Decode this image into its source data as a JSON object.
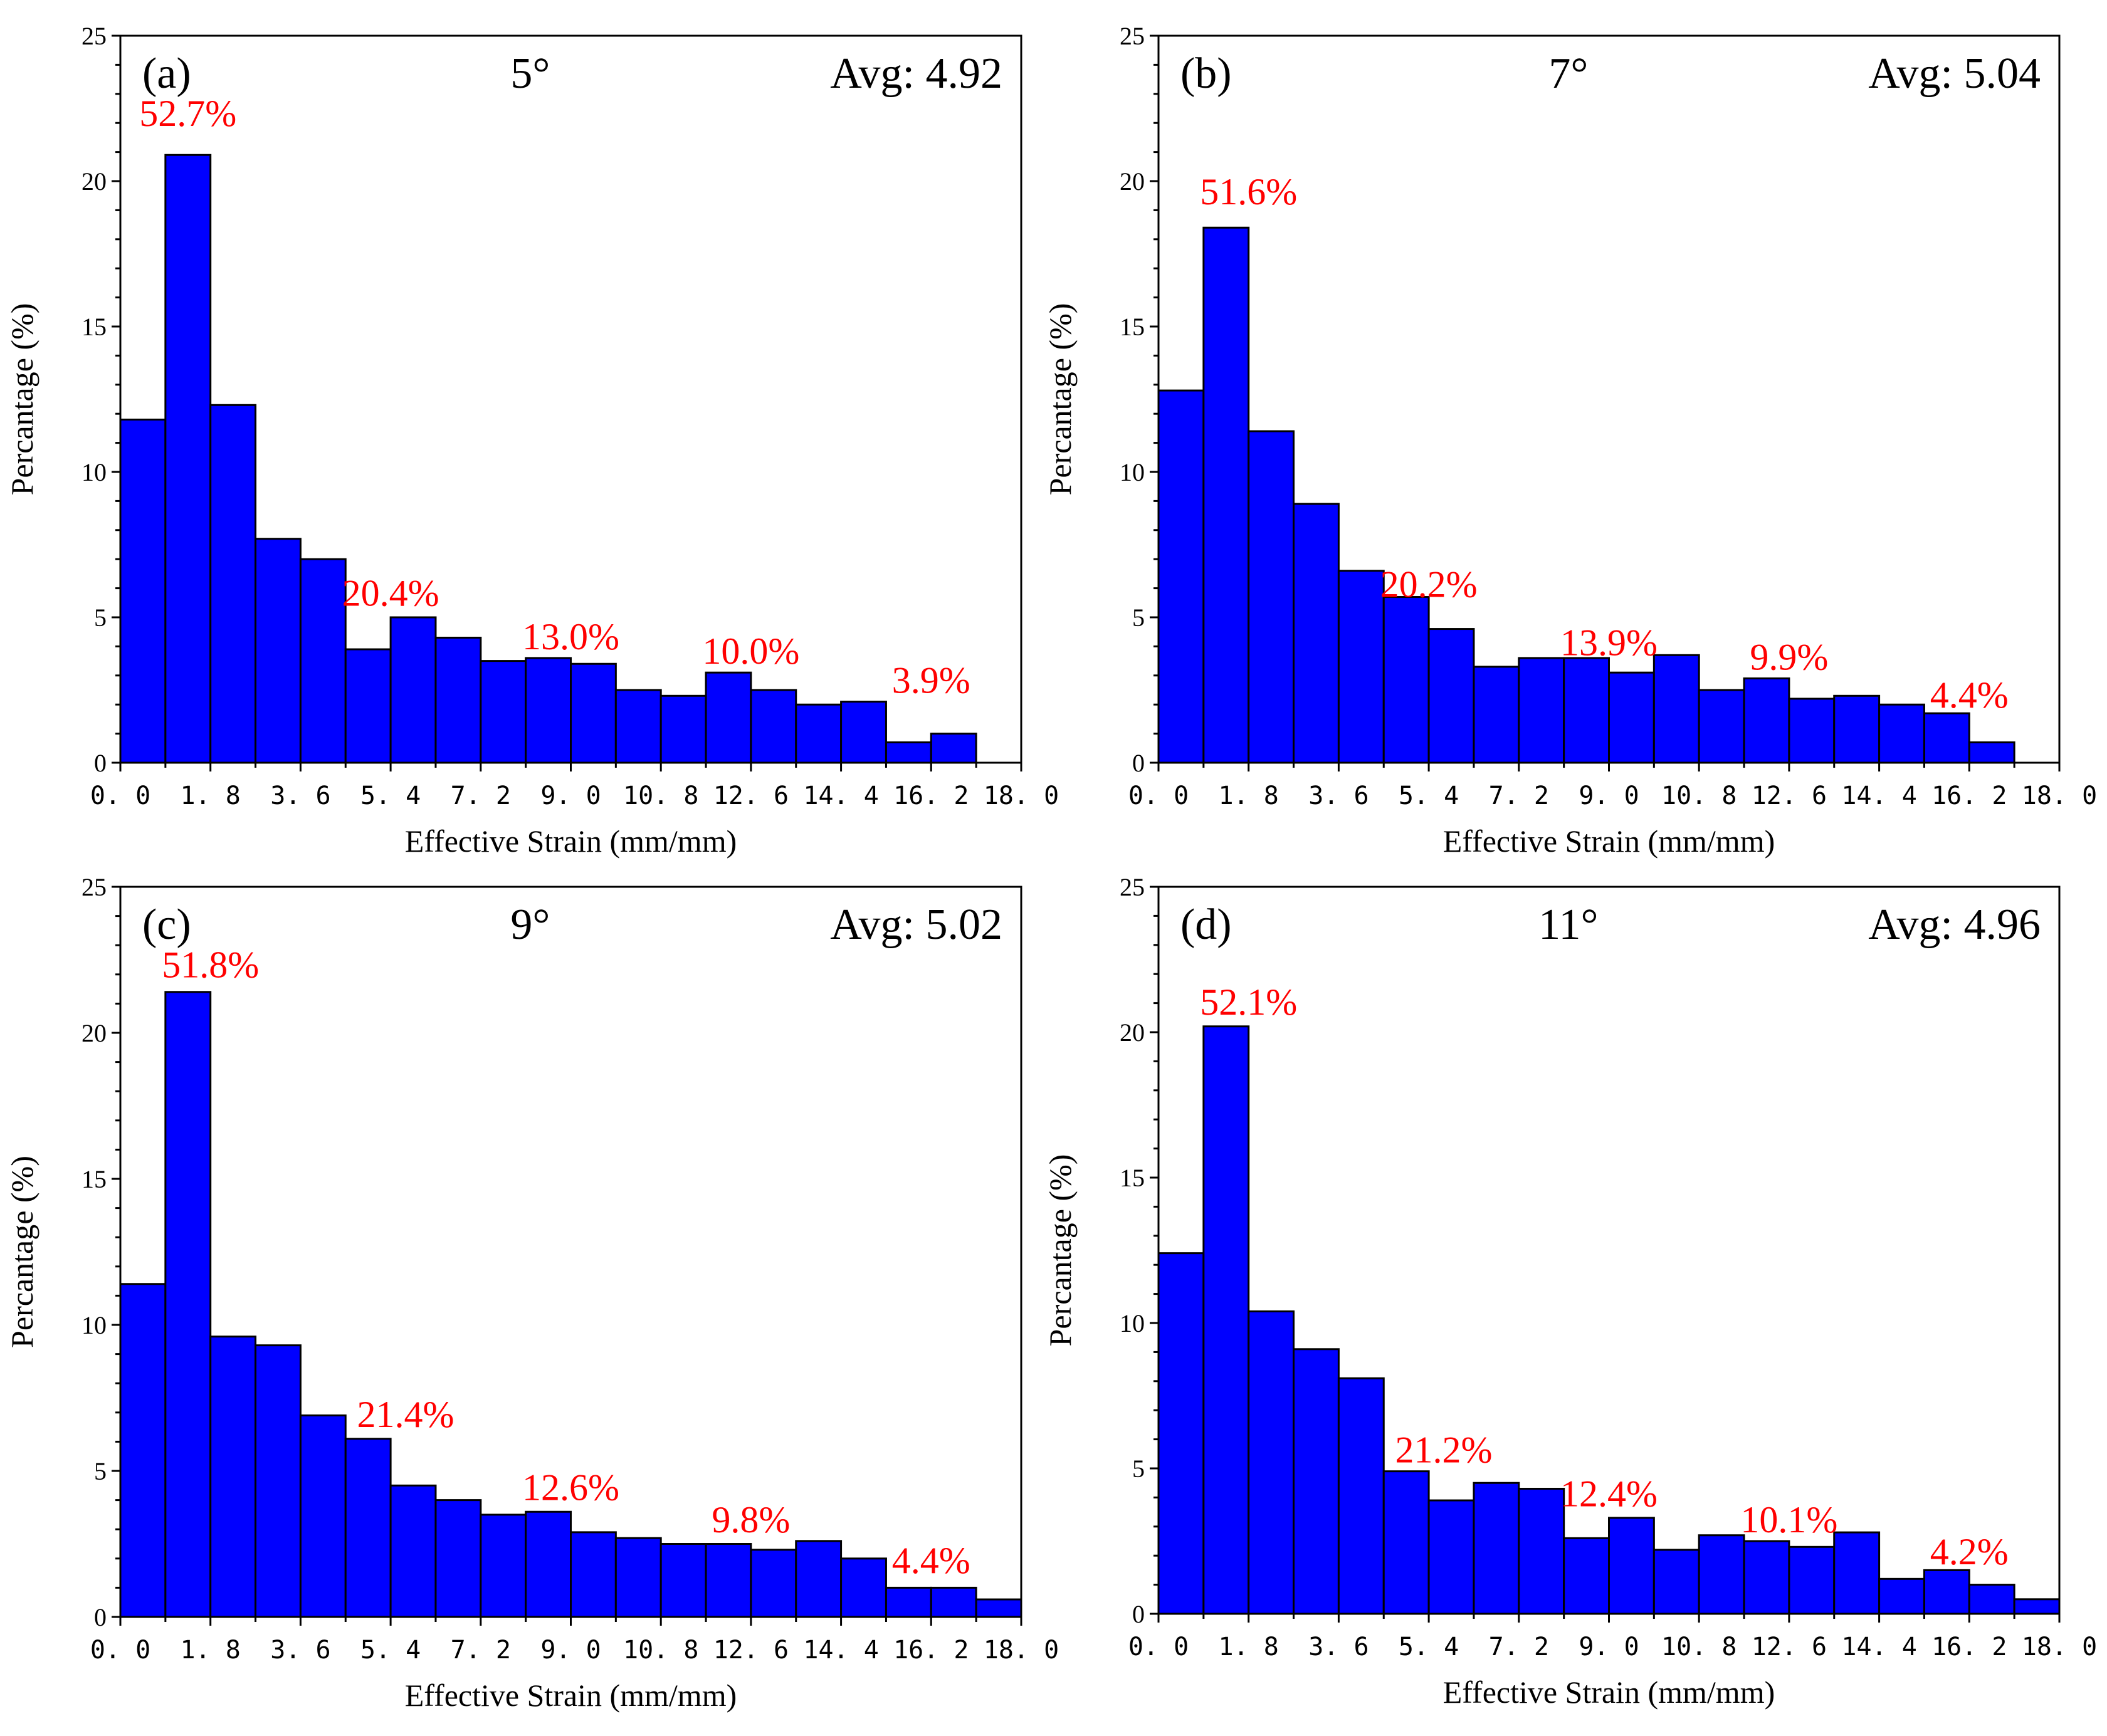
{
  "colors": {
    "bar_fill": "#0000ff",
    "annotation": "#ff0000",
    "axis": "#000000"
  },
  "chart_data": [
    {
      "type": "bar",
      "panel_label": "(a)",
      "angle": "5°",
      "avg": "Avg: 4.92",
      "xlabel": "Effective Strain (mm/mm)",
      "ylabel": "Percantage (%)",
      "xlim": [
        0,
        18
      ],
      "ylim": [
        0,
        25
      ],
      "x_ticks": [
        "0.0",
        "1.8",
        "3.6",
        "5.4",
        "7.2",
        "9.0",
        "10.8",
        "12.6",
        "14.4",
        "16.2",
        "18.0"
      ],
      "y_ticks": [
        "0",
        "5",
        "10",
        "15",
        "20",
        "25"
      ],
      "bin_width": 0.9,
      "bin_starts": [
        0,
        0.9,
        1.8,
        2.7,
        3.6,
        4.5,
        5.4,
        6.3,
        7.2,
        8.1,
        9.0,
        9.9,
        10.8,
        11.7,
        12.6,
        13.5,
        14.4,
        15.3,
        16.2
      ],
      "values": [
        11.8,
        20.9,
        12.3,
        7.7,
        7.0,
        3.9,
        5.0,
        4.3,
        3.5,
        3.6,
        3.4,
        2.5,
        2.3,
        3.1,
        2.5,
        2.0,
        2.1,
        0.7,
        1.0
      ],
      "annotations": [
        {
          "text": "52.7%",
          "x": 1.35,
          "y": 21.9
        },
        {
          "text": "20.4%",
          "x": 5.4,
          "y": 5.4
        },
        {
          "text": "13.0%",
          "x": 9.0,
          "y": 3.9
        },
        {
          "text": "10.0%",
          "x": 12.6,
          "y": 3.4
        },
        {
          "text": "3.9%",
          "x": 16.2,
          "y": 2.4
        }
      ]
    },
    {
      "type": "bar",
      "panel_label": "(b)",
      "angle": "7°",
      "avg": "Avg: 5.04",
      "xlabel": "Effective Strain (mm/mm)",
      "ylabel": "Percantage (%)",
      "xlim": [
        0,
        18
      ],
      "ylim": [
        0,
        25
      ],
      "x_ticks": [
        "0.0",
        "1.8",
        "3.6",
        "5.4",
        "7.2",
        "9.0",
        "10.8",
        "12.6",
        "14.4",
        "16.2",
        "18.0"
      ],
      "y_ticks": [
        "0",
        "5",
        "10",
        "15",
        "20",
        "25"
      ],
      "bin_width": 0.9,
      "bin_starts": [
        0,
        0.9,
        1.8,
        2.7,
        3.6,
        4.5,
        5.4,
        6.3,
        7.2,
        8.1,
        9.0,
        9.9,
        10.8,
        11.7,
        12.6,
        13.5,
        14.4,
        15.3,
        16.2
      ],
      "values": [
        12.8,
        18.4,
        11.4,
        8.9,
        6.6,
        5.7,
        4.6,
        3.3,
        3.6,
        3.6,
        3.1,
        3.7,
        2.5,
        2.9,
        2.2,
        2.3,
        2.0,
        1.7,
        0.7
      ],
      "annotations": [
        {
          "text": "51.6%",
          "x": 1.8,
          "y": 19.2
        },
        {
          "text": "20.2%",
          "x": 5.4,
          "y": 5.7
        },
        {
          "text": "13.9%",
          "x": 9.0,
          "y": 3.7
        },
        {
          "text": "9.9%",
          "x": 12.6,
          "y": 3.2
        },
        {
          "text": "4.4%",
          "x": 16.2,
          "y": 1.9
        }
      ]
    },
    {
      "type": "bar",
      "panel_label": "(c)",
      "angle": "9°",
      "avg": "Avg: 5.02",
      "xlabel": "Effective Strain (mm/mm)",
      "ylabel": "Percantage (%)",
      "xlim": [
        0,
        18
      ],
      "ylim": [
        0,
        25
      ],
      "x_ticks": [
        "0.0",
        "1.8",
        "3.6",
        "5.4",
        "7.2",
        "9.0",
        "10.8",
        "12.6",
        "14.4",
        "16.2",
        "18.0"
      ],
      "y_ticks": [
        "0",
        "5",
        "10",
        "15",
        "20",
        "25"
      ],
      "bin_width": 0.9,
      "bin_starts": [
        0,
        0.9,
        1.8,
        2.7,
        3.6,
        4.5,
        5.4,
        6.3,
        7.2,
        8.1,
        9.0,
        9.9,
        10.8,
        11.7,
        12.6,
        13.5,
        14.4,
        15.3,
        16.2,
        17.1
      ],
      "values": [
        11.4,
        21.4,
        9.6,
        9.3,
        6.9,
        6.1,
        4.5,
        4.0,
        3.5,
        3.6,
        2.9,
        2.7,
        2.5,
        2.5,
        2.3,
        2.6,
        2.0,
        1.0,
        1.0,
        0.6
      ],
      "annotations": [
        {
          "text": "51.8%",
          "x": 1.8,
          "y": 21.9
        },
        {
          "text": "21.4%",
          "x": 5.7,
          "y": 6.5
        },
        {
          "text": "12.6%",
          "x": 9.0,
          "y": 4.0
        },
        {
          "text": "9.8%",
          "x": 12.6,
          "y": 2.9
        },
        {
          "text": "4.4%",
          "x": 16.2,
          "y": 1.5
        }
      ]
    },
    {
      "type": "bar",
      "panel_label": "(d)",
      "angle": "11°",
      "avg": "Avg: 4.96",
      "xlabel": "Effective Strain (mm/mm)",
      "ylabel": "Percantage (%)",
      "xlim": [
        0,
        18
      ],
      "ylim": [
        0,
        25
      ],
      "x_ticks": [
        "0.0",
        "1.8",
        "3.6",
        "5.4",
        "7.2",
        "9.0",
        "10.8",
        "12.6",
        "14.4",
        "16.2",
        "18.0"
      ],
      "y_ticks": [
        "0",
        "5",
        "10",
        "15",
        "20",
        "25"
      ],
      "bin_width": 0.9,
      "bin_starts": [
        0,
        0.9,
        1.8,
        2.7,
        3.6,
        4.5,
        5.4,
        6.3,
        7.2,
        8.1,
        9.0,
        9.9,
        10.8,
        11.7,
        12.6,
        13.5,
        14.4,
        15.3,
        16.2,
        17.1
      ],
      "values": [
        12.4,
        20.2,
        10.4,
        9.1,
        8.1,
        4.9,
        3.9,
        4.5,
        4.3,
        2.6,
        3.3,
        2.2,
        2.7,
        2.5,
        2.3,
        2.8,
        1.2,
        1.5,
        1.0,
        0.5
      ],
      "annotations": [
        {
          "text": "52.1%",
          "x": 1.8,
          "y": 20.6
        },
        {
          "text": "21.2%",
          "x": 5.7,
          "y": 5.2
        },
        {
          "text": "12.4%",
          "x": 9.0,
          "y": 3.7
        },
        {
          "text": "10.1%",
          "x": 12.6,
          "y": 2.8
        },
        {
          "text": "4.2%",
          "x": 16.2,
          "y": 1.7
        }
      ]
    }
  ]
}
